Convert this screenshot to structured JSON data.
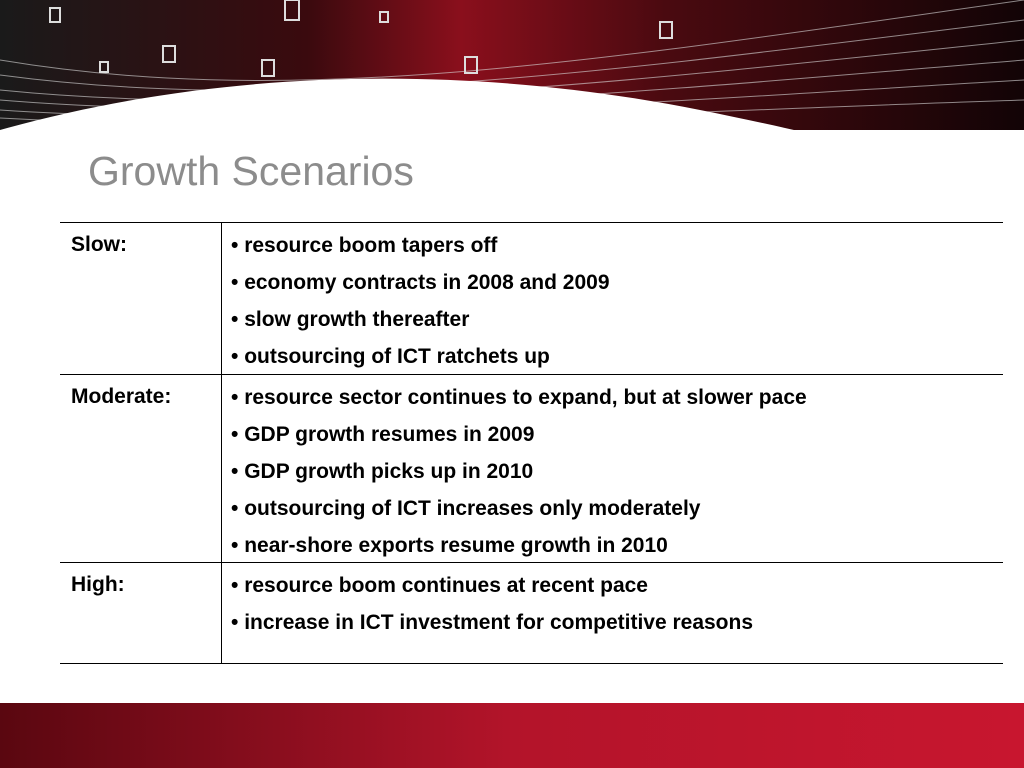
{
  "title": "Growth Scenarios",
  "table": {
    "rows": [
      {
        "label": "Slow:",
        "items": [
          "resource boom tapers off",
          "economy contracts in 2008 and 2009",
          "slow growth thereafter",
          "outsourcing of ICT ratchets up"
        ]
      },
      {
        "label": "Moderate:",
        "items": [
          "resource sector continues to expand, but at slower pace",
          "GDP growth resumes in 2009",
          "GDP growth picks up in 2010",
          "outsourcing of ICT increases only moderately",
          "near-shore exports resume growth in 2010"
        ]
      },
      {
        "label": "High:",
        "items": [
          "resource boom continues at recent pace",
          "increase in ICT investment for competitive reasons"
        ]
      }
    ]
  }
}
